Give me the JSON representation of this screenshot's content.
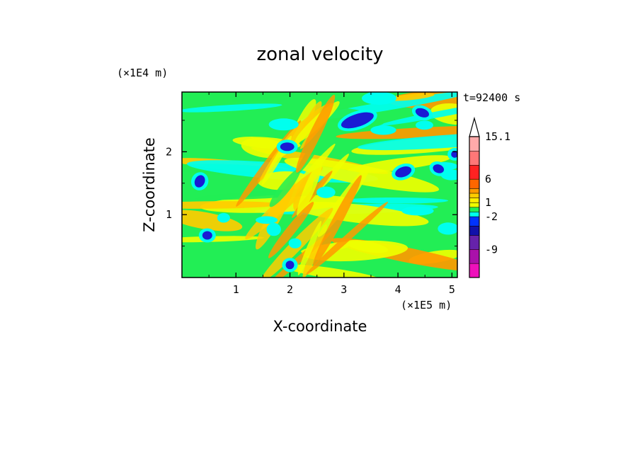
{
  "chart_data": {
    "type": "heatmap",
    "title": "zonal velocity",
    "xlabel": "X-coordinate",
    "ylabel": "Z-coordinate",
    "x_unit": "(×1E5 m)",
    "y_unit": "(×1E4 m)",
    "time_label": "t=92400 s",
    "x_ticks": [
      1,
      2,
      3,
      4,
      5
    ],
    "y_ticks": [
      1,
      2
    ],
    "x_range": [
      0,
      5.1
    ],
    "y_range": [
      0,
      2.95
    ],
    "colorbar": {
      "tick_labels": [
        "15.1",
        "6",
        "1",
        "-2",
        "-9"
      ],
      "levels": [
        15.1,
        12,
        9,
        6,
        4,
        3,
        2,
        1,
        0,
        -1,
        -2,
        -4,
        -6,
        -9,
        -12,
        -15
      ],
      "colors": [
        "#ffaaaa",
        "#ff7777",
        "#ff2222",
        "#ff6600",
        "#ff9900",
        "#ffcc00",
        "#ffee00",
        "#eeff00",
        "#22ee55",
        "#00ffee",
        "#0033ff",
        "#1111aa",
        "#6622aa",
        "#aa11aa",
        "#ee11bb"
      ],
      "extend": "max"
    },
    "field_colors": {
      "neg_strong": "#1a1ad4",
      "neg_weak": "#00ffee",
      "zero": "#22ee55",
      "pos_weak": "#eeff00",
      "pos_mid": "#ffcc00",
      "pos_strong": "#ff9900"
    },
    "grid": false
  }
}
